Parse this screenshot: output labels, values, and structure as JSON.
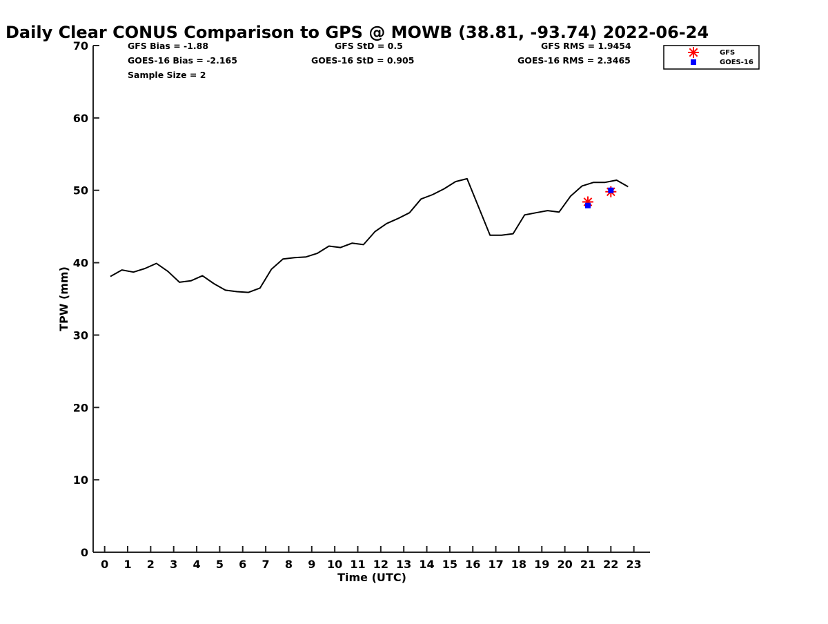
{
  "chart_data": {
    "type": "line",
    "title": "Daily Clear CONUS Comparison to GPS @ MOWB (38.81, -93.74) 2022-06-24",
    "xlabel": "Time (UTC)",
    "ylabel": "TPW (mm)",
    "xlim": [
      -0.5,
      23.7
    ],
    "ylim": [
      0,
      70
    ],
    "xticks": [
      0,
      1,
      2,
      3,
      4,
      5,
      6,
      7,
      8,
      9,
      10,
      11,
      12,
      13,
      14,
      15,
      16,
      17,
      18,
      19,
      20,
      21,
      22,
      23
    ],
    "yticks": [
      0,
      10,
      20,
      30,
      40,
      50,
      60,
      70
    ],
    "grid": false,
    "legend_position": "top-right",
    "stats": [
      {
        "text": "GFS Bias = -1.88"
      },
      {
        "text": "GFS StD = 0.5"
      },
      {
        "text": "GFS RMS = 1.9454"
      },
      {
        "text": "GOES-16 Bias = -2.165"
      },
      {
        "text": "GOES-16 StD = 0.905"
      },
      {
        "text": "GOES-16 RMS = 2.3465"
      },
      {
        "text": "Sample Size = 2"
      }
    ],
    "gps_line": {
      "color": "#000000",
      "x": [
        0.25,
        0.75,
        1.25,
        1.75,
        2.25,
        2.75,
        3.25,
        3.75,
        4.25,
        4.75,
        5.25,
        5.75,
        6.25,
        6.75,
        7.25,
        7.75,
        8.25,
        8.75,
        9.25,
        9.75,
        10.25,
        10.75,
        11.25,
        11.75,
        12.25,
        12.75,
        13.25,
        13.75,
        14.25,
        14.75,
        15.25,
        15.75,
        16.75,
        17.25,
        17.75,
        18.25,
        18.75,
        19.25,
        19.75,
        20.25,
        20.75,
        21.25,
        21.75,
        22.25,
        22.75
      ],
      "y": [
        38.1,
        39.0,
        38.7,
        39.2,
        39.9,
        38.8,
        37.3,
        37.5,
        38.2,
        37.1,
        36.2,
        36.0,
        35.9,
        36.5,
        39.1,
        40.5,
        40.7,
        40.8,
        41.3,
        42.3,
        42.1,
        42.7,
        42.5,
        44.3,
        45.4,
        46.1,
        46.9,
        48.8,
        49.4,
        50.2,
        51.2,
        51.6,
        43.8,
        43.8,
        44.0,
        46.6,
        46.9,
        47.2,
        47.0,
        49.2,
        50.6,
        51.1,
        51.1,
        51.4,
        50.5
      ]
    },
    "series": [
      {
        "name": "GFS",
        "marker": "asterisk",
        "color": "#ff0000",
        "x": [
          21.0,
          22.0
        ],
        "y": [
          48.4,
          49.8
        ]
      },
      {
        "name": "GOES-16",
        "marker": "square",
        "color": "#0000ff",
        "x": [
          21.0,
          22.0
        ],
        "y": [
          47.9,
          50.0
        ]
      }
    ]
  }
}
